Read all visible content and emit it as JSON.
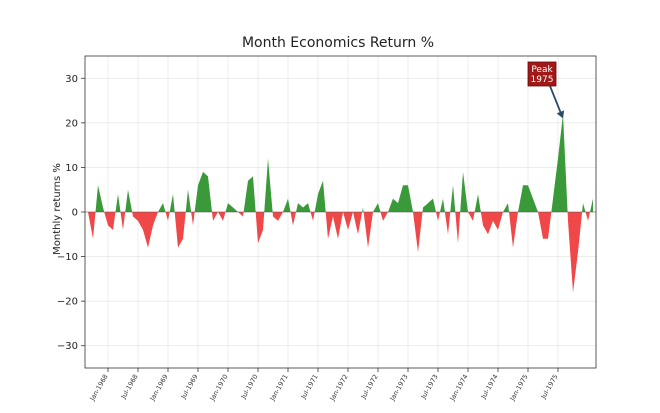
{
  "chart_data": {
    "type": "area",
    "title": "Month Economics Return %",
    "xlabel": "",
    "ylabel": "Monthly returns %",
    "ylim": [
      -35,
      35
    ],
    "yticks": [
      -30,
      -20,
      -10,
      0,
      10,
      20,
      30
    ],
    "grid": true,
    "positive_color": "#3a9a3a",
    "negative_color": "#f04848",
    "x_tick_labels": [
      "Jan-1968",
      "Jul-1968",
      "Jan-1969",
      "Jul-1969",
      "Jan-1970",
      "Jul-1970",
      "Jan-1971",
      "Jul-1971",
      "Jan-1972",
      "Jul-1972",
      "Jan-1973",
      "Jul-1973",
      "Jan-1974",
      "Jul-1974",
      "Jan-1975",
      "Jul-1975"
    ],
    "x_tick_positions": [
      4,
      10,
      16,
      22,
      28,
      34,
      40,
      46,
      52,
      58,
      64,
      70,
      76,
      82,
      88,
      94
    ],
    "values": [
      0,
      -6,
      6,
      1,
      -3,
      -4,
      4,
      -4,
      5,
      -1,
      -2,
      -4,
      -8,
      -3,
      0,
      2,
      -2,
      4,
      -8,
      -6,
      5,
      -3,
      6,
      9,
      8,
      -2,
      0,
      -2,
      2,
      1,
      0,
      -1,
      7,
      8,
      -7,
      -4,
      12,
      -1,
      -2,
      0,
      3,
      -3,
      2,
      1,
      2,
      -2,
      4,
      7,
      -6,
      -1,
      -6,
      0,
      -4,
      0,
      -5,
      1,
      -8,
      0,
      2,
      -2,
      0,
      3,
      2,
      6,
      6,
      0,
      -9,
      1,
      2,
      3,
      -2,
      3,
      -5,
      6,
      -7,
      9,
      0,
      -2,
      4,
      -3,
      -5,
      -2,
      -4,
      0,
      2,
      -8,
      0,
      6,
      6,
      3,
      0,
      -6,
      -6,
      3,
      12,
      22,
      -2,
      -18,
      -9,
      2,
      -2,
      3
    ],
    "annotation": {
      "text_line1": "Peak",
      "text_line2": "1975",
      "x_index": 95,
      "y_value": 21
    }
  }
}
